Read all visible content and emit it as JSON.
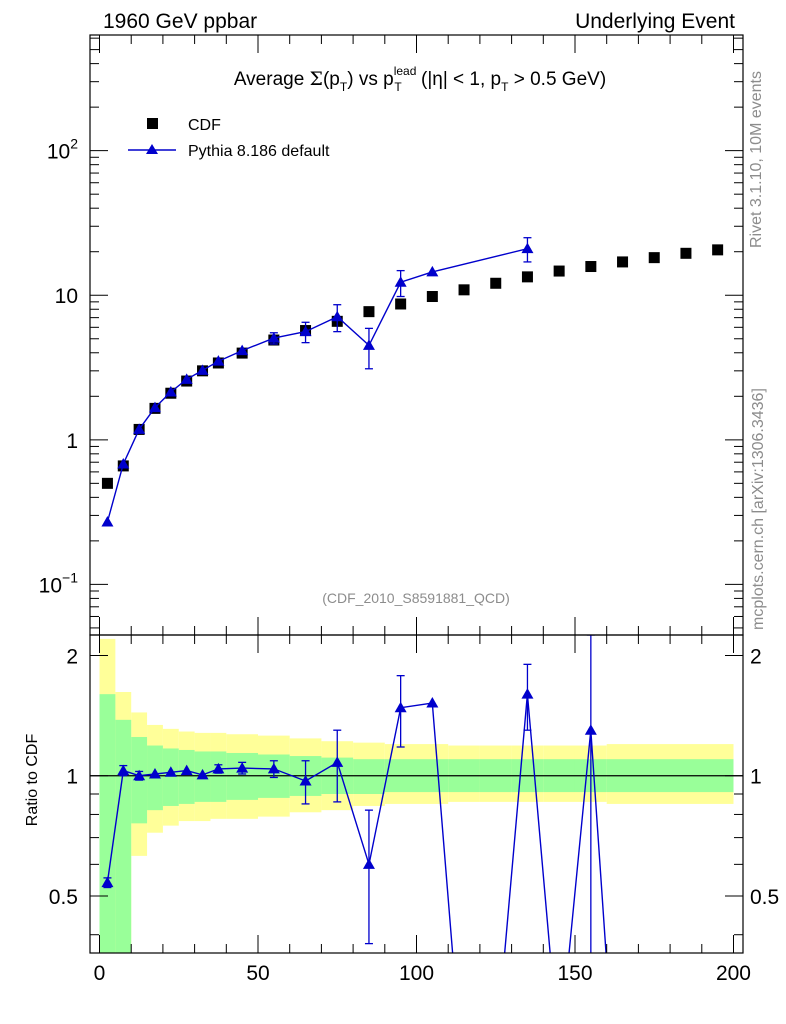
{
  "header": {
    "left": "1960 GeV ppbar",
    "right": "Underlying Event"
  },
  "side": {
    "rivet": "Rivet 3.1.10,  10M events",
    "mcplots": "mcplots.cern.ch [arXiv:1306.3436]"
  },
  "chart_data": [
    {
      "type": "scatter",
      "title": "Average Σ(pT) vs pT^lead (|η| < 1, pT > 0.5 GeV)",
      "title_parts": {
        "t1": "Average ",
        "sigma": "Σ",
        "t2": "(p",
        "sub": "T",
        "t3": ") vs p",
        "sup2": "lead",
        "sub2": "T",
        "t4": " (|η| < 1, p",
        "sub3": "T",
        "t5": " > 0.5 GeV)"
      },
      "watermark": "(CDF_2010_S8591881_QCD)",
      "xlim": [
        -3,
        203
      ],
      "ylim_log10": [
        -1.35,
        2.8
      ],
      "yscale": "log",
      "y_tick_labels": [
        {
          "value": 0.1,
          "base": "10",
          "exp": "−1"
        },
        {
          "value": 1,
          "base": "1",
          "exp": ""
        },
        {
          "value": 10,
          "base": "10",
          "exp": ""
        },
        {
          "value": 100,
          "base": "10",
          "exp": "2"
        }
      ],
      "legend": [
        {
          "name": "CDF",
          "marker": "square",
          "color": "#000000"
        },
        {
          "name": "Pythia 8.186 default",
          "marker": "triangle",
          "color": "#0000cc"
        }
      ],
      "series": [
        {
          "name": "CDF",
          "x": [
            2.5,
            7.5,
            12.5,
            17.5,
            22.5,
            27.5,
            32.5,
            37.5,
            45,
            55,
            65,
            75,
            85,
            95,
            105,
            115,
            125,
            135,
            145,
            155,
            165,
            175,
            185,
            195
          ],
          "y": [
            0.5,
            0.66,
            1.18,
            1.65,
            2.1,
            2.55,
            3.0,
            3.4,
            3.98,
            4.9,
            5.7,
            6.6,
            7.7,
            8.7,
            9.8,
            10.9,
            12.1,
            13.4,
            14.7,
            15.8,
            17.0,
            18.2,
            19.5,
            20.6
          ]
        },
        {
          "name": "Pythia 8.186 default",
          "x": [
            2.5,
            7.5,
            12.5,
            17.5,
            22.5,
            27.5,
            32.5,
            37.5,
            45,
            55,
            65,
            75,
            85,
            95,
            105,
            135
          ],
          "y": [
            0.27,
            0.68,
            1.18,
            1.67,
            2.14,
            2.62,
            3.02,
            3.5,
            4.14,
            5.05,
            5.6,
            7.1,
            4.5,
            12.3,
            14.5,
            21.0
          ],
          "err": [
            0.005,
            0.02,
            0.03,
            0.03,
            0.04,
            0.05,
            0.05,
            0.06,
            0.15,
            0.45,
            0.9,
            1.5,
            1.4,
            2.5,
            0.3,
            4.0
          ]
        }
      ]
    },
    {
      "type": "line",
      "ylabel": "Ratio to CDF",
      "xlim": [
        -3,
        203
      ],
      "ylim": [
        0.36,
        2.25
      ],
      "yscale": "log",
      "y_tick_labels": [
        {
          "value": 0.5,
          "label": "0.5"
        },
        {
          "value": 1,
          "label": "1"
        },
        {
          "value": 2,
          "label": "2"
        }
      ],
      "x_tick_labels": [
        {
          "value": 0,
          "label": "0"
        },
        {
          "value": 50,
          "label": "50"
        },
        {
          "value": 100,
          "label": "100"
        },
        {
          "value": 150,
          "label": "150"
        },
        {
          "value": 200,
          "label": "200"
        }
      ],
      "bands": [
        {
          "x0": 0,
          "x1": 5,
          "g": [
            0.3,
            1.6
          ],
          "y": [
            0.3,
            2.2
          ]
        },
        {
          "x0": 5,
          "x1": 10,
          "g": [
            0.36,
            1.38
          ],
          "y": [
            0.3,
            1.62
          ]
        },
        {
          "x0": 10,
          "x1": 15,
          "g": [
            0.76,
            1.25
          ],
          "y": [
            0.63,
            1.44
          ]
        },
        {
          "x0": 15,
          "x1": 20,
          "g": [
            0.82,
            1.19
          ],
          "y": [
            0.72,
            1.34
          ]
        },
        {
          "x0": 20,
          "x1": 25,
          "g": [
            0.84,
            1.17
          ],
          "y": [
            0.75,
            1.31
          ]
        },
        {
          "x0": 25,
          "x1": 30,
          "g": [
            0.85,
            1.16
          ],
          "y": [
            0.77,
            1.29
          ]
        },
        {
          "x0": 30,
          "x1": 35,
          "g": [
            0.86,
            1.15
          ],
          "y": [
            0.77,
            1.28
          ]
        },
        {
          "x0": 35,
          "x1": 40,
          "g": [
            0.86,
            1.15
          ],
          "y": [
            0.78,
            1.28
          ]
        },
        {
          "x0": 40,
          "x1": 50,
          "g": [
            0.87,
            1.14
          ],
          "y": [
            0.78,
            1.27
          ]
        },
        {
          "x0": 50,
          "x1": 60,
          "g": [
            0.88,
            1.13
          ],
          "y": [
            0.79,
            1.26
          ]
        },
        {
          "x0": 60,
          "x1": 70,
          "g": [
            0.89,
            1.12
          ],
          "y": [
            0.81,
            1.24
          ]
        },
        {
          "x0": 70,
          "x1": 80,
          "g": [
            0.9,
            1.11
          ],
          "y": [
            0.82,
            1.22
          ]
        },
        {
          "x0": 80,
          "x1": 90,
          "g": [
            0.9,
            1.1
          ],
          "y": [
            0.84,
            1.21
          ]
        },
        {
          "x0": 90,
          "x1": 100,
          "g": [
            0.91,
            1.1
          ],
          "y": [
            0.85,
            1.2
          ]
        },
        {
          "x0": 100,
          "x1": 110,
          "g": [
            0.91,
            1.1
          ],
          "y": [
            0.85,
            1.2
          ]
        },
        {
          "x0": 110,
          "x1": 120,
          "g": [
            0.91,
            1.1
          ],
          "y": [
            0.86,
            1.19
          ]
        },
        {
          "x0": 120,
          "x1": 130,
          "g": [
            0.91,
            1.1
          ],
          "y": [
            0.86,
            1.19
          ]
        },
        {
          "x0": 130,
          "x1": 140,
          "g": [
            0.91,
            1.1
          ],
          "y": [
            0.86,
            1.19
          ]
        },
        {
          "x0": 140,
          "x1": 150,
          "g": [
            0.91,
            1.1
          ],
          "y": [
            0.86,
            1.19
          ]
        },
        {
          "x0": 150,
          "x1": 160,
          "g": [
            0.91,
            1.1
          ],
          "y": [
            0.86,
            1.19
          ]
        },
        {
          "x0": 160,
          "x1": 200,
          "g": [
            0.91,
            1.1
          ],
          "y": [
            0.85,
            1.2
          ]
        }
      ],
      "series": [
        {
          "name": "Pythia 8.186 default / CDF",
          "x": [
            2.5,
            7.5,
            12.5,
            17.5,
            22.5,
            27.5,
            32.5,
            37.5,
            45,
            55,
            65,
            75,
            85,
            95,
            105,
            114,
            125,
            135,
            145,
            155,
            162
          ],
          "y": [
            0.54,
            1.03,
            1.0,
            1.01,
            1.02,
            1.03,
            1.005,
            1.04,
            1.045,
            1.04,
            0.97,
            1.08,
            0.6,
            1.48,
            1.52,
            0.2,
            0.2,
            1.6,
            0.2,
            1.3,
            0.2
          ],
          "err": [
            0.015,
            0.03,
            0.025,
            0.02,
            0.02,
            0.02,
            0.02,
            0.025,
            0.035,
            0.05,
            0.12,
            0.22,
            0.22,
            0.3,
            0.03,
            0,
            0,
            0.3,
            0,
            0.95,
            0
          ],
          "marker": [
            true,
            true,
            true,
            true,
            true,
            true,
            true,
            true,
            true,
            true,
            true,
            true,
            true,
            true,
            true,
            false,
            false,
            true,
            false,
            true,
            false
          ]
        }
      ]
    }
  ]
}
